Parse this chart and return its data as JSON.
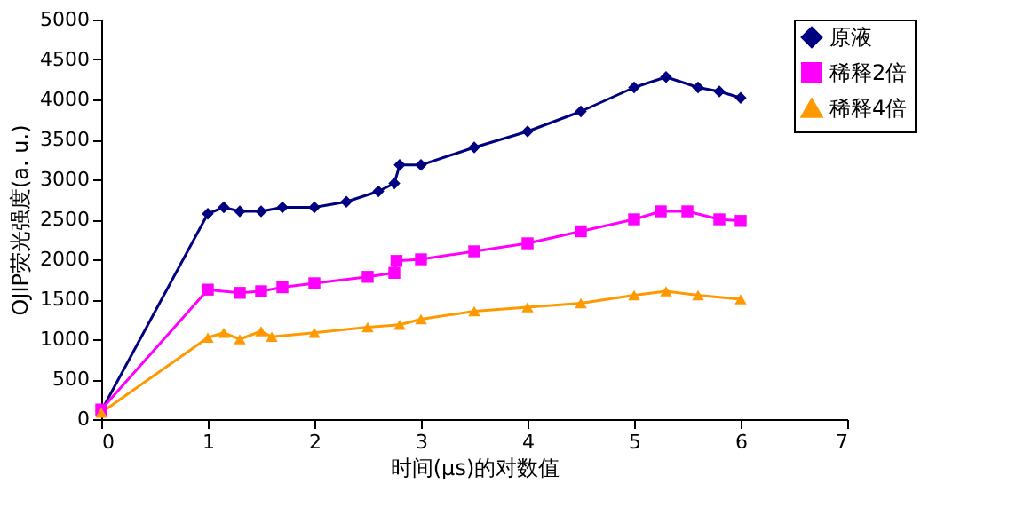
{
  "chart_data": {
    "type": "line",
    "xlabel": "时间(μs)的对数值",
    "ylabel": "OJIP荧光强度(a. u.)",
    "xlim": [
      0,
      7
    ],
    "xticks": [
      0,
      1,
      2,
      3,
      4,
      5,
      6,
      7
    ],
    "ylim": [
      0,
      5000
    ],
    "yticks": [
      0,
      500,
      1000,
      1500,
      2000,
      2500,
      3000,
      3500,
      4000,
      4500,
      5000
    ],
    "grid": false,
    "legend": "top right",
    "series": [
      {
        "name": "原液",
        "color": "#000080",
        "marker": "diamond",
        "x": [
          0,
          1,
          1.15,
          1.3,
          1.5,
          1.7,
          2,
          2.3,
          2.6,
          2.75,
          2.8,
          3,
          3.5,
          4,
          4.5,
          5,
          5.3,
          5.6,
          5.8,
          6
        ],
        "values": [
          100,
          2570,
          2650,
          2600,
          2600,
          2650,
          2650,
          2720,
          2850,
          2950,
          3180,
          3180,
          3400,
          3600,
          3850,
          4150,
          4280,
          4150,
          4100,
          4020
        ]
      },
      {
        "name": "稀释2倍",
        "color": "#ff00ff",
        "marker": "square",
        "x": [
          0,
          1,
          1.3,
          1.5,
          1.7,
          2,
          2.5,
          2.75,
          2.77,
          3,
          3.5,
          4,
          4.5,
          5,
          5.25,
          5.5,
          5.8,
          6
        ],
        "values": [
          120,
          1620,
          1580,
          1600,
          1650,
          1700,
          1780,
          1830,
          1980,
          2000,
          2100,
          2200,
          2350,
          2500,
          2600,
          2600,
          2500,
          2480
        ]
      },
      {
        "name": "稀释4倍",
        "color": "#ff9900",
        "marker": "triangle",
        "x": [
          0,
          1,
          1.15,
          1.3,
          1.5,
          1.6,
          2,
          2.5,
          2.8,
          3,
          3.5,
          4,
          4.5,
          5,
          5.3,
          5.6,
          6
        ],
        "values": [
          80,
          1020,
          1080,
          1000,
          1100,
          1030,
          1080,
          1150,
          1180,
          1250,
          1350,
          1400,
          1450,
          1550,
          1600,
          1550,
          1500
        ]
      }
    ]
  }
}
